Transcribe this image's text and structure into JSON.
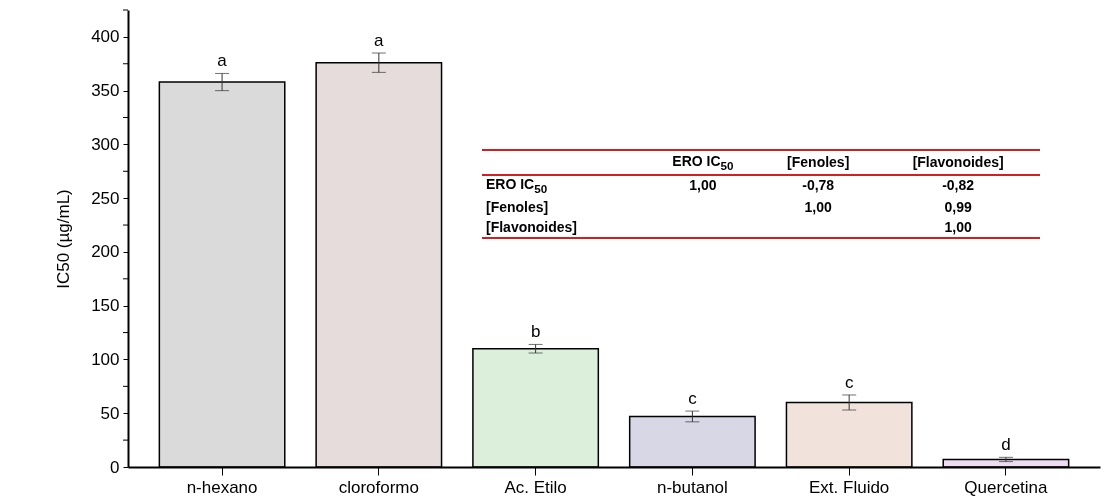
{
  "chart_data": {
    "type": "bar",
    "ylabel": "IC50 (µg/mL)",
    "categories": [
      "n-hexano",
      "cloroformo",
      "Ac. Etilo",
      "n-butanol",
      "Ext. Fluido",
      "Quercetina"
    ],
    "values": [
      358,
      376,
      110,
      47,
      60,
      7
    ],
    "errors": [
      8,
      9,
      4,
      5,
      7,
      2
    ],
    "colors": [
      "#555555",
      "#8b5e5e",
      "#5cb85c",
      "#4a4a8c",
      "#c0805c",
      "#b060c8"
    ],
    "ylim": [
      0,
      425
    ],
    "yticks": [
      0,
      {
        "value": 25,
        "label": null
      },
      50,
      {
        "value": 75,
        "label": null
      },
      100,
      {
        "value": 125,
        "label": null
      },
      150,
      {
        "value": 175,
        "label": null
      },
      200,
      {
        "value": 225,
        "label": null
      },
      250,
      {
        "value": 275,
        "label": null
      },
      300,
      {
        "value": 325,
        "label": null
      },
      350,
      {
        "value": 375,
        "label": null
      },
      400,
      {
        "value": 425,
        "label": null
      }
    ],
    "grid": false,
    "annotations": [
      {
        "text": "a",
        "x": "n-hexano",
        "y": 366
      },
      {
        "text": "a",
        "x": "cloroformo",
        "y": 385
      },
      {
        "text": "b",
        "x": "Ac. Etilo",
        "y": 114
      },
      {
        "text": "c",
        "x": "n-butanol",
        "y": 52
      },
      {
        "text": "c",
        "x": "Ext. Fluido",
        "y": 67
      },
      {
        "text": "d",
        "x": "Quercetina",
        "y": 9
      },
      "ERO IC$_{50}$",
      "[Fenoles]",
      "[Flavonoides]",
      "ERO IC$_{50}$",
      "1,00",
      "-0,78",
      "-0,82",
      "[Fenoles]",
      "1,00",
      "0,99",
      "[Flavonoides]",
      "1,00"
    ]
  }
}
